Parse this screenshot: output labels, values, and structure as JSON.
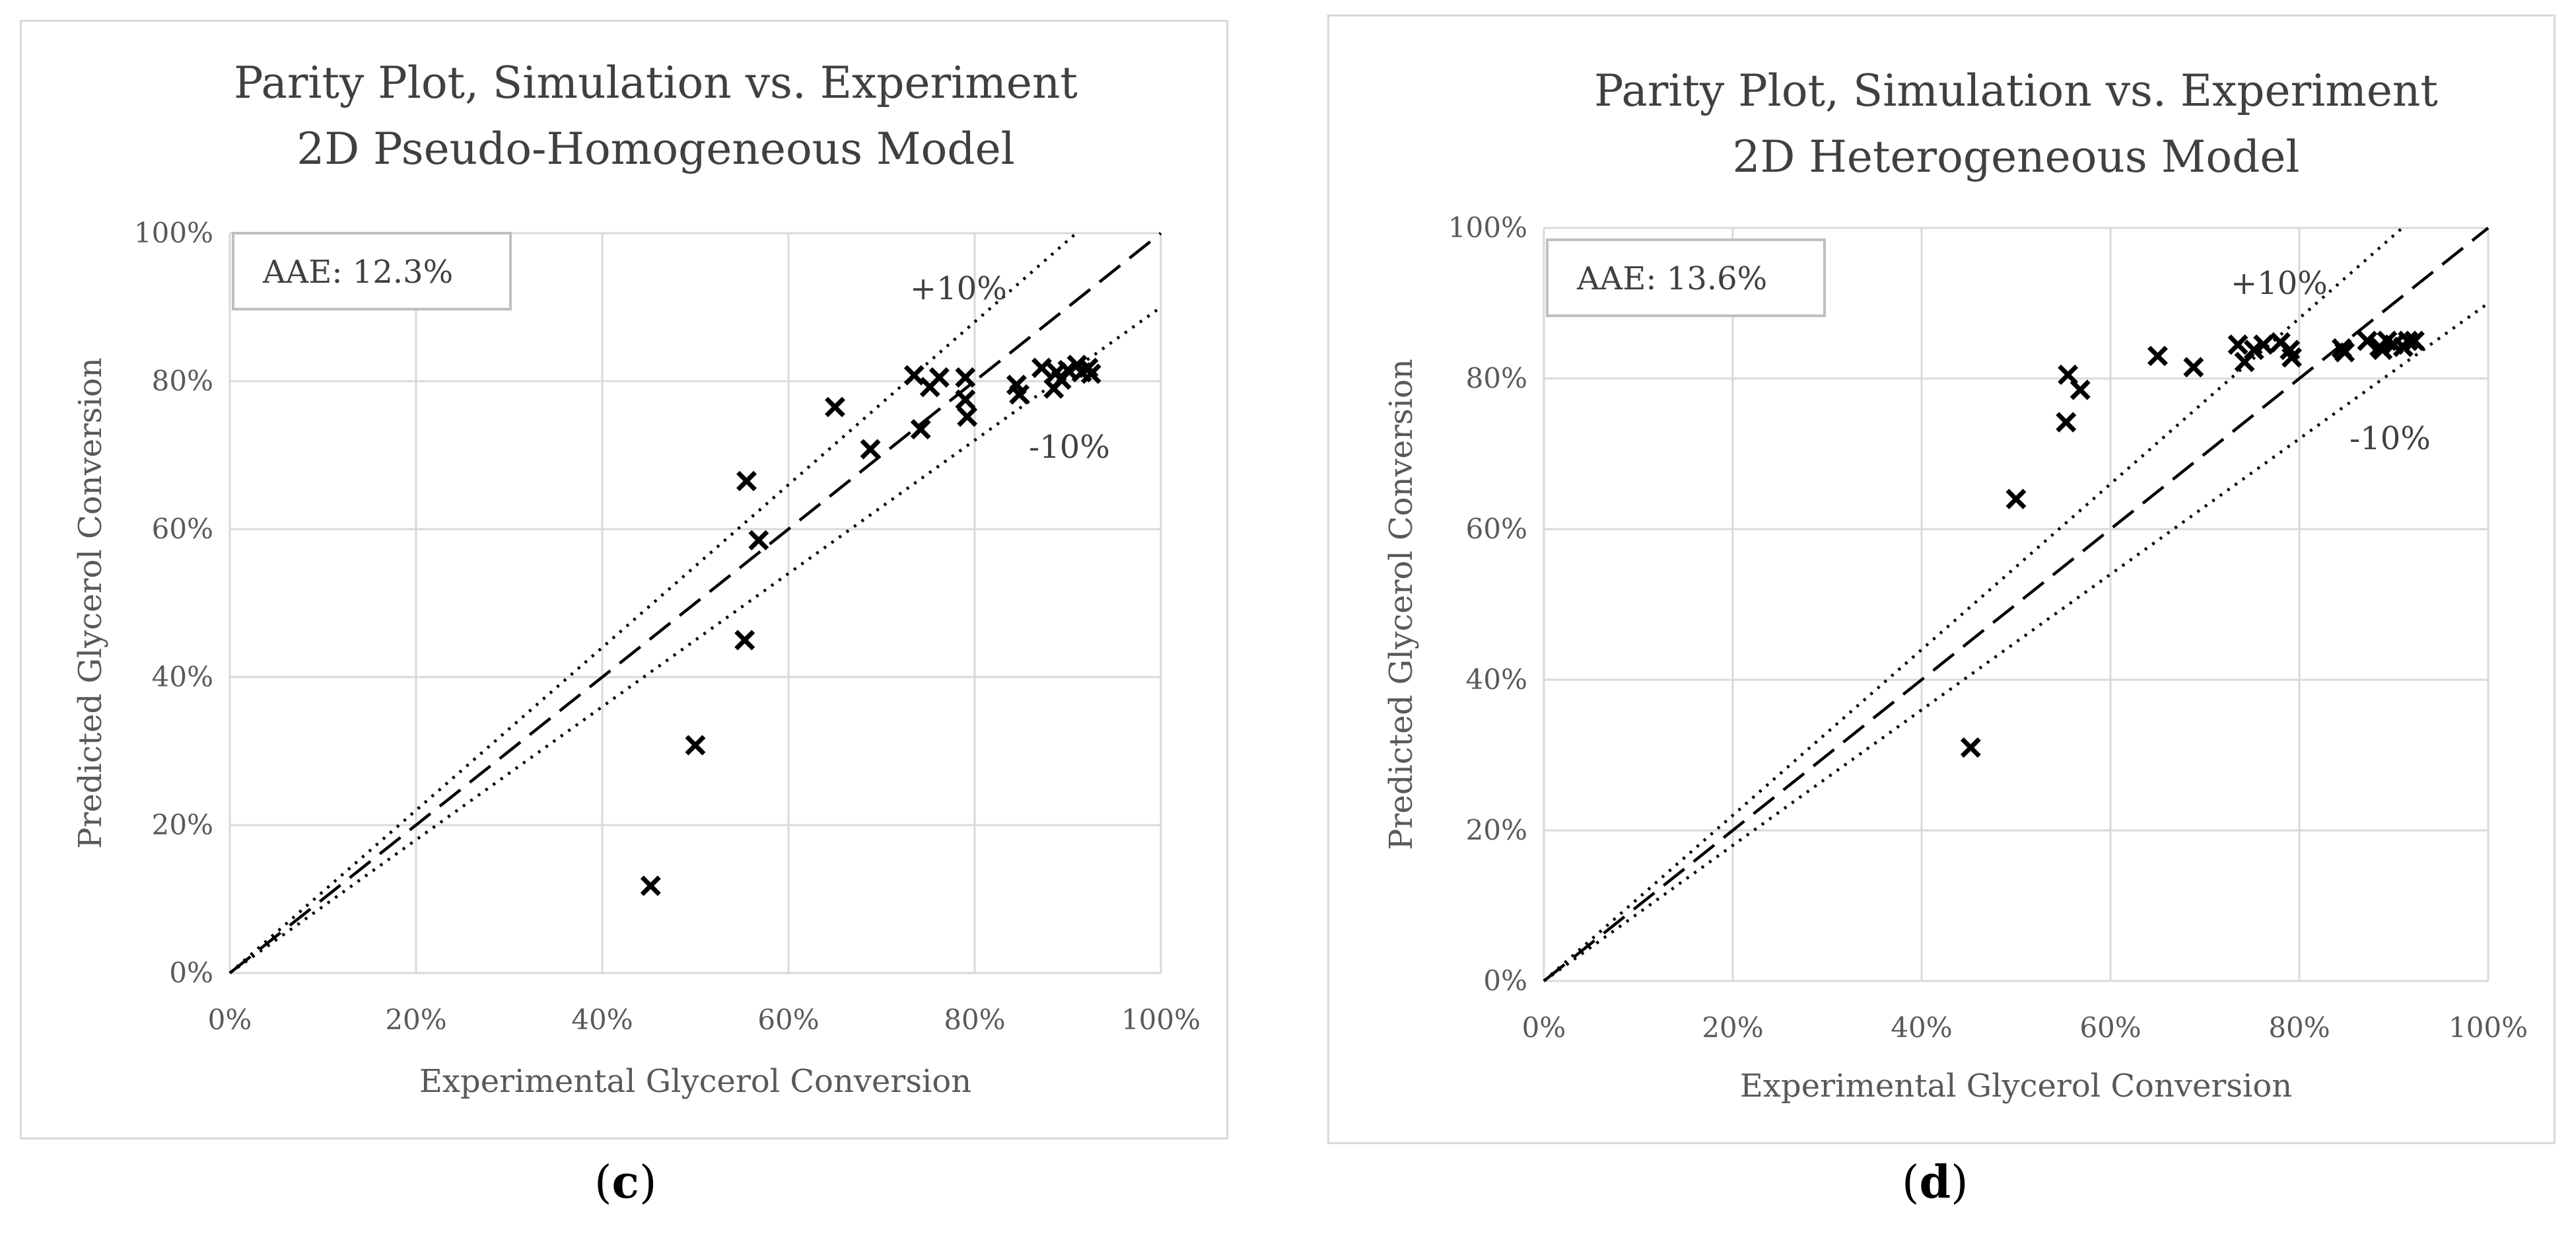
{
  "chart_data": [
    {
      "type": "scatter",
      "panel_label": "c",
      "title": [
        "Parity Plot, Simulation vs. Experiment",
        "2D Pseudo-Homogeneous Model"
      ],
      "xlabel": "Experimental Glycerol Conversion",
      "ylabel": "Predicted Glycerol Conversion",
      "xlim": [
        0,
        1
      ],
      "ylim": [
        0,
        1
      ],
      "ticks": [
        0,
        0.2,
        0.4,
        0.6,
        0.8,
        1.0
      ],
      "tick_labels": [
        "0%",
        "20%",
        "40%",
        "60%",
        "80%",
        "100%"
      ],
      "grid": true,
      "annotation": "AAE: 12.3%",
      "band_labels": {
        "upper": "+10%",
        "lower": "-10%"
      },
      "parity_line": {
        "slope": 1.0,
        "style": "dashed"
      },
      "bands": [
        {
          "slope": 1.1,
          "style": "dotted"
        },
        {
          "slope": 0.9,
          "style": "dotted"
        }
      ],
      "points": [
        [
          0.452,
          0.118
        ],
        [
          0.5,
          0.308
        ],
        [
          0.553,
          0.45
        ],
        [
          0.555,
          0.665
        ],
        [
          0.568,
          0.585
        ],
        [
          0.65,
          0.765
        ],
        [
          0.688,
          0.708
        ],
        [
          0.735,
          0.808
        ],
        [
          0.742,
          0.735
        ],
        [
          0.752,
          0.792
        ],
        [
          0.762,
          0.805
        ],
        [
          0.79,
          0.805
        ],
        [
          0.79,
          0.775
        ],
        [
          0.792,
          0.752
        ],
        [
          0.845,
          0.795
        ],
        [
          0.848,
          0.782
        ],
        [
          0.872,
          0.818
        ],
        [
          0.885,
          0.79
        ],
        [
          0.888,
          0.812
        ],
        [
          0.893,
          0.802
        ],
        [
          0.9,
          0.815
        ],
        [
          0.91,
          0.822
        ],
        [
          0.915,
          0.812
        ],
        [
          0.922,
          0.818
        ],
        [
          0.925,
          0.81
        ]
      ]
    },
    {
      "type": "scatter",
      "panel_label": "d",
      "title": [
        "Parity Plot, Simulation vs. Experiment",
        "2D Heterogeneous Model"
      ],
      "xlabel": "Experimental Glycerol Conversion",
      "ylabel": "Predicted Glycerol Conversion",
      "xlim": [
        0,
        1
      ],
      "ylim": [
        0,
        1
      ],
      "ticks": [
        0,
        0.2,
        0.4,
        0.6,
        0.8,
        1.0
      ],
      "tick_labels": [
        "0%",
        "20%",
        "40%",
        "60%",
        "80%",
        "100%"
      ],
      "grid": true,
      "annotation": "AAE: 13.6%",
      "band_labels": {
        "upper": "+10%",
        "lower": "-10%"
      },
      "parity_line": {
        "slope": 1.0,
        "style": "dashed"
      },
      "bands": [
        {
          "slope": 1.1,
          "style": "dotted"
        },
        {
          "slope": 0.9,
          "style": "dotted"
        }
      ],
      "points": [
        [
          0.452,
          0.31
        ],
        [
          0.5,
          0.64
        ],
        [
          0.553,
          0.742
        ],
        [
          0.555,
          0.805
        ],
        [
          0.568,
          0.785
        ],
        [
          0.65,
          0.83
        ],
        [
          0.688,
          0.815
        ],
        [
          0.735,
          0.845
        ],
        [
          0.742,
          0.822
        ],
        [
          0.752,
          0.838
        ],
        [
          0.762,
          0.845
        ],
        [
          0.78,
          0.848
        ],
        [
          0.79,
          0.838
        ],
        [
          0.792,
          0.828
        ],
        [
          0.845,
          0.84
        ],
        [
          0.848,
          0.835
        ],
        [
          0.872,
          0.85
        ],
        [
          0.885,
          0.842
        ],
        [
          0.888,
          0.838
        ],
        [
          0.893,
          0.85
        ],
        [
          0.9,
          0.845
        ],
        [
          0.91,
          0.842
        ],
        [
          0.915,
          0.85
        ],
        [
          0.922,
          0.85
        ]
      ]
    }
  ]
}
